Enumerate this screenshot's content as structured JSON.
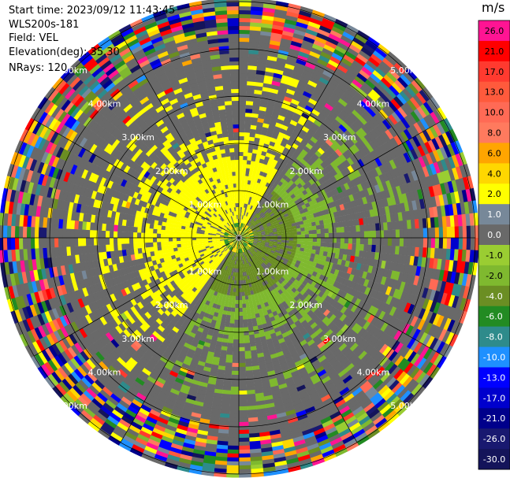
{
  "header": {
    "start_time": "Start time: 2023/09/12 11:43:45",
    "instrument": "WLS200s-181",
    "field": "Field: VEL",
    "elevation": "Elevation(deg): 35.30",
    "nrays": "NRays: 120"
  },
  "colorbar": {
    "unit": "m/s",
    "levels": [
      {
        "label": "26.0",
        "color": "#ff1493"
      },
      {
        "label": "21.0",
        "color": "#ff0000"
      },
      {
        "label": "17.0",
        "color": "#ff3a2f"
      },
      {
        "label": "13.0",
        "color": "#ff5a3c"
      },
      {
        "label": "10.0",
        "color": "#ff6a55"
      },
      {
        "label": "8.0",
        "color": "#ff7a5e"
      },
      {
        "label": "6.0",
        "color": "#ffa500"
      },
      {
        "label": "4.0",
        "color": "#ffd700"
      },
      {
        "label": "2.0",
        "color": "#ffff00"
      },
      {
        "label": "1.0",
        "color": "#778899"
      },
      {
        "label": "0.0",
        "color": "#696969"
      },
      {
        "label": "-1.0",
        "color": "#9acd32"
      },
      {
        "label": "-2.0",
        "color": "#7fb92f"
      },
      {
        "label": "-4.0",
        "color": "#6b8e23"
      },
      {
        "label": "-6.0",
        "color": "#228b22"
      },
      {
        "label": "-8.0",
        "color": "#2e8b8b"
      },
      {
        "label": "-10.0",
        "color": "#1e90ff"
      },
      {
        "label": "-13.0",
        "color": "#0000ff"
      },
      {
        "label": "-17.0",
        "color": "#0000cd"
      },
      {
        "label": "-21.0",
        "color": "#00008b"
      },
      {
        "label": "-26.0",
        "color": "#191970"
      },
      {
        "label": "-30.0",
        "color": "#14145a"
      }
    ]
  },
  "chart_data": {
    "type": "heatmap",
    "plot": "PPI",
    "field": "VEL",
    "units": "m/s",
    "nrays": 120,
    "elevation_deg": 35.3,
    "range_rings_km": [
      1.0,
      2.0,
      3.0,
      4.0,
      5.0
    ],
    "ring_labels": [
      "1.00km",
      "2.00km",
      "3.00km",
      "4.00km",
      "5.00km"
    ],
    "spokes": 12,
    "color_scale": [
      -30.0,
      -26.0,
      -21.0,
      -17.0,
      -13.0,
      -10.0,
      -8.0,
      -6.0,
      -4.0,
      -2.0,
      -1.0,
      0.0,
      1.0,
      2.0,
      4.0,
      6.0,
      8.0,
      10.0,
      13.0,
      17.0,
      21.0,
      26.0
    ],
    "pattern_notes": {
      "near_field": "yellow (+2 to +4) toward west/north-west, green (-1 to -4) toward east/south-east within 2 km",
      "mid_field": "grey (0 to +1) ring between 2 and 3.5 km",
      "far_field": "noisy multicolour beyond 3.5 km"
    }
  }
}
